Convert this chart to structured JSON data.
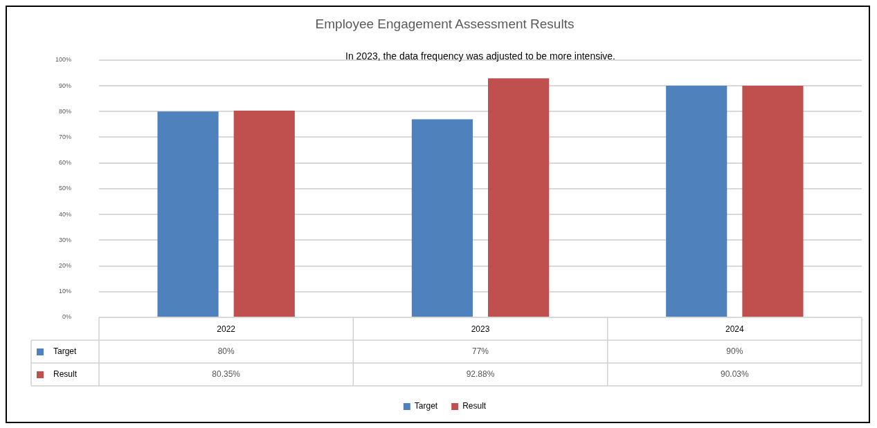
{
  "chart_data": {
    "type": "bar",
    "title": "Employee Engagement Assessment Results",
    "annotations": [
      "In 2023, the data frequency was adjusted to be more intensive."
    ],
    "categories": [
      "2022",
      "2023",
      "2024"
    ],
    "series": [
      {
        "name": "Target",
        "color": "#4f81bd",
        "values": [
          80,
          77,
          90
        ],
        "value_labels": [
          "80%",
          "77%",
          "90%"
        ]
      },
      {
        "name": "Result",
        "color": "#c0504d",
        "values": [
          80.35,
          92.88,
          90.03
        ],
        "value_labels": [
          "80.35%",
          "92.88%",
          "90.03%"
        ]
      }
    ],
    "ylim": [
      0,
      100
    ],
    "yticks": [
      {
        "value": 0,
        "label": "0%"
      },
      {
        "value": 10,
        "label": "10%"
      },
      {
        "value": 20,
        "label": "20%"
      },
      {
        "value": 30,
        "label": "30%"
      },
      {
        "value": 40,
        "label": "40%"
      },
      {
        "value": 50,
        "label": "50%"
      },
      {
        "value": 60,
        "label": "60%"
      },
      {
        "value": 70,
        "label": "70%"
      },
      {
        "value": 80,
        "label": "80%"
      },
      {
        "value": 90,
        "label": "90%"
      },
      {
        "value": 100,
        "label": "100%"
      }
    ],
    "grid": "y",
    "legend": "bottom"
  }
}
